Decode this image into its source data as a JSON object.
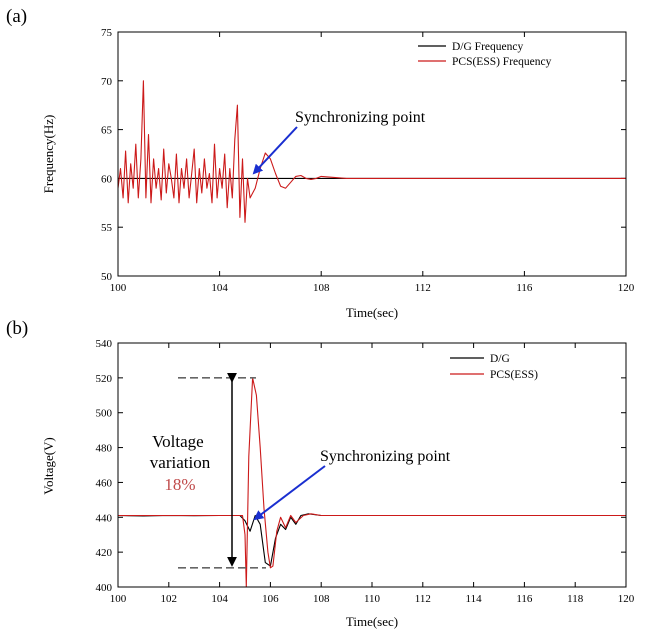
{
  "chart_data": [
    {
      "panel_label": "(a)",
      "type": "line",
      "xlabel": "Time(sec)",
      "ylabel": "Frequency(Hz)",
      "xlim": [
        100,
        120
      ],
      "ylim": [
        50,
        75
      ],
      "xticks": [
        100,
        104,
        108,
        112,
        116,
        120
      ],
      "yticks": [
        50,
        55,
        60,
        65,
        70,
        75
      ],
      "legend_position": "top-right",
      "series": [
        {
          "name": "D/G Frequency",
          "color": "#000000",
          "x": [
            100,
            120
          ],
          "y": [
            60,
            60
          ]
        },
        {
          "name": "PCS(ESS) Frequency",
          "color": "#cc1a1a",
          "x": [
            100.0,
            100.1,
            100.2,
            100.3,
            100.4,
            100.5,
            100.6,
            100.7,
            100.8,
            100.9,
            101.0,
            101.1,
            101.2,
            101.3,
            101.4,
            101.5,
            101.6,
            101.7,
            101.8,
            101.9,
            102.0,
            102.1,
            102.2,
            102.3,
            102.4,
            102.5,
            102.6,
            102.7,
            102.8,
            102.9,
            103.0,
            103.1,
            103.2,
            103.3,
            103.4,
            103.5,
            103.6,
            103.7,
            103.8,
            103.9,
            104.0,
            104.1,
            104.2,
            104.3,
            104.4,
            104.5,
            104.6,
            104.7,
            104.8,
            104.9,
            105.0,
            105.1,
            105.2,
            105.4,
            105.6,
            105.8,
            106.0,
            106.2,
            106.4,
            106.6,
            106.8,
            107.0,
            107.2,
            107.4,
            107.6,
            107.8,
            108.0,
            108.5,
            109.0,
            110.0,
            120.0
          ],
          "y": [
            59,
            61,
            58,
            62.8,
            57.5,
            61.5,
            59,
            63.5,
            58,
            62,
            70,
            58,
            64.5,
            57.5,
            62,
            59,
            61,
            57.8,
            63,
            58.5,
            61.5,
            60,
            58,
            62.5,
            57.5,
            61,
            59,
            62,
            58,
            60.5,
            63,
            57.5,
            61,
            58.5,
            62,
            59,
            60.5,
            57.5,
            63.5,
            58,
            61,
            59,
            62.5,
            57,
            61,
            58,
            64,
            67.5,
            56,
            62,
            55.5,
            60,
            58,
            59,
            61,
            62.6,
            62,
            60.5,
            59.2,
            59,
            59.6,
            60.2,
            60.3,
            60.0,
            59.9,
            60.0,
            60.2,
            60.1,
            60.0,
            60,
            60
          ]
        }
      ],
      "annotations": [
        {
          "text": "Synchronizing point",
          "arrow_to": [
            105.2,
            60
          ]
        }
      ]
    },
    {
      "panel_label": "(b)",
      "type": "line",
      "xlabel": "Time(sec)",
      "ylabel": "Voltage(V)",
      "xlim": [
        100,
        120
      ],
      "ylim": [
        400,
        540
      ],
      "xticks": [
        100,
        102,
        104,
        106,
        108,
        110,
        112,
        114,
        116,
        118,
        120
      ],
      "yticks": [
        400,
        420,
        440,
        460,
        480,
        500,
        520,
        540
      ],
      "legend_position": "top-right",
      "series": [
        {
          "name": "D/G",
          "color": "#000000",
          "x": [
            100,
            101,
            102,
            103,
            104,
            104.8,
            105.0,
            105.2,
            105.4,
            105.6,
            105.8,
            106.0,
            106.2,
            106.4,
            106.6,
            106.8,
            107.0,
            107.2,
            107.5,
            108,
            109,
            110,
            112,
            114,
            116,
            118,
            120
          ],
          "y": [
            441,
            440.8,
            441,
            440.9,
            441,
            441,
            438,
            432,
            441,
            436,
            414,
            412,
            428,
            436,
            433,
            440,
            436,
            441,
            442,
            441,
            441,
            441,
            441,
            441,
            441,
            441,
            441
          ]
        },
        {
          "name": "PCS(ESS)",
          "color": "#cc1a1a",
          "x": [
            100,
            104,
            104.9,
            105.0,
            105.05,
            105.15,
            105.3,
            105.45,
            105.6,
            105.75,
            105.9,
            106.0,
            106.1,
            106.25,
            106.4,
            106.6,
            106.8,
            107.0,
            107.3,
            107.6,
            108,
            110,
            120
          ],
          "y": [
            441,
            441,
            441,
            430,
            400,
            475,
            520,
            510,
            480,
            445,
            420,
            411,
            412,
            432,
            440,
            434,
            441,
            437,
            441,
            442,
            441,
            441,
            441
          ]
        }
      ],
      "annotations": [
        {
          "text": "Synchronizing point",
          "arrow_to": [
            105.1,
            441
          ]
        },
        {
          "text": "Voltage variation",
          "value": "18%",
          "from": 411,
          "to": 520
        }
      ]
    }
  ]
}
